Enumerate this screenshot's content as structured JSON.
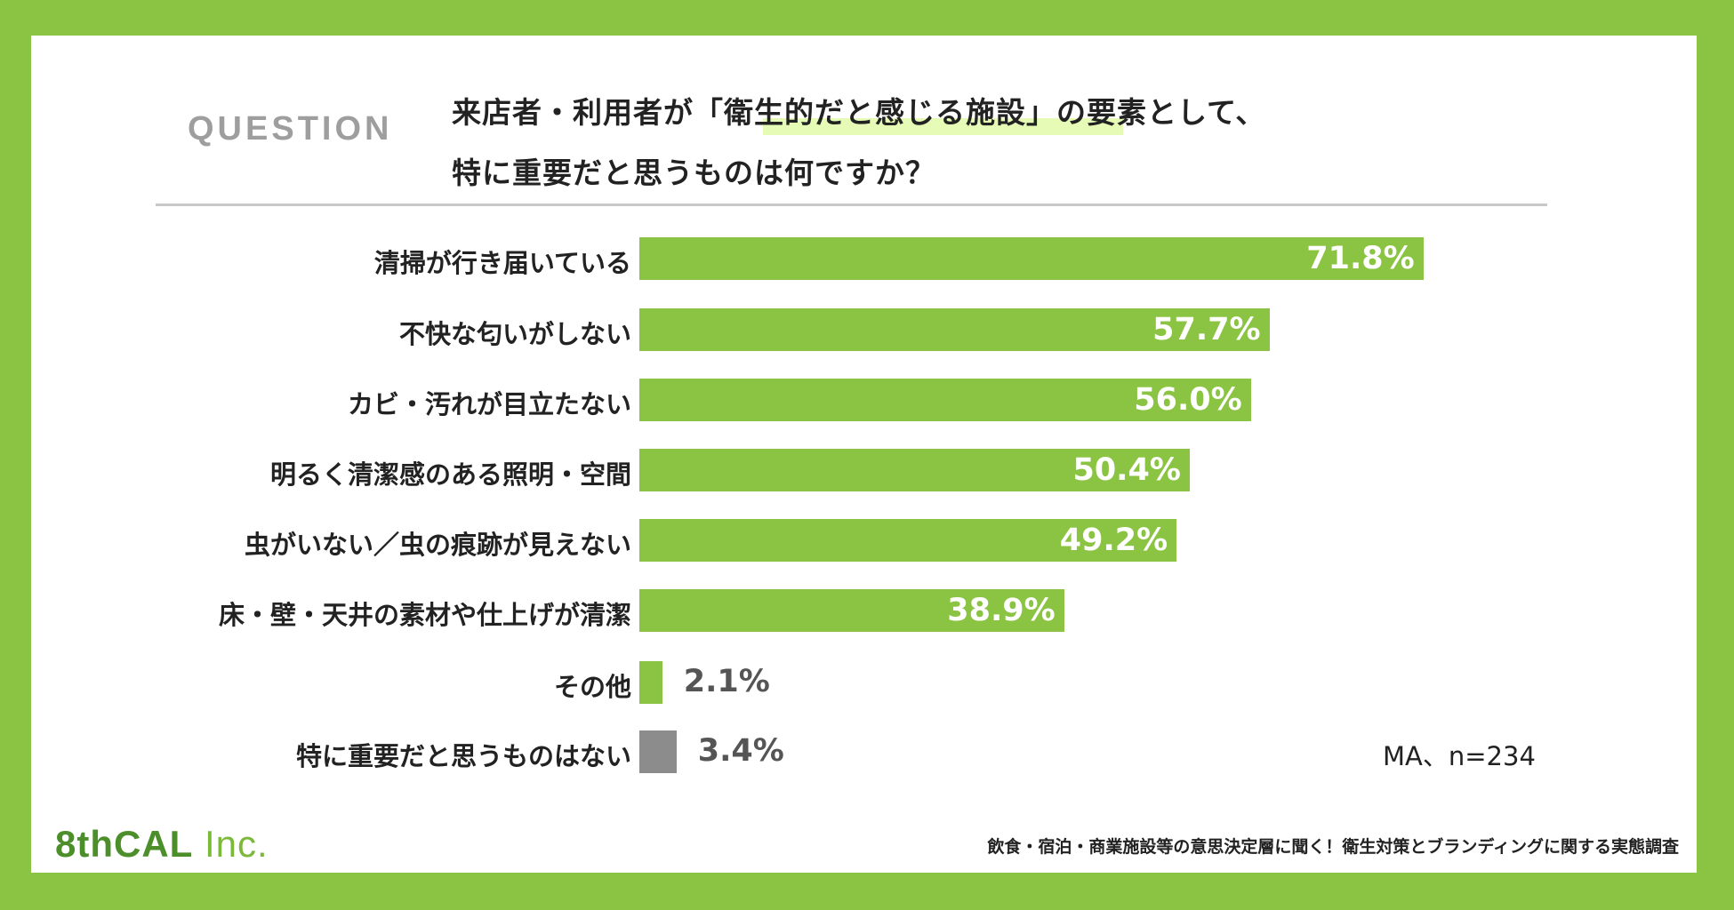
{
  "header": {
    "tag": "QUESTION",
    "question_line1_pre": "来店者・利用者が「",
    "question_line1_highlight": "衛生的だと感じる施設",
    "question_line1_post": "」の要素として、",
    "question_line2": "特に重要だと思うものは何ですか？"
  },
  "chart_data": {
    "type": "bar",
    "orientation": "horizontal",
    "title": "来店者・利用者が「衛生的だと感じる施設」の要素として、特に重要だと思うものは何ですか？",
    "categories": [
      "清掃が行き届いている",
      "不快な匂いがしない",
      "カビ・汚れが目立たない",
      "明るく清潔感のある照明・空間",
      "虫がいない／虫の痕跡が見えない",
      "床・壁・天井の素材や仕上げが清潔",
      "その他",
      "特に重要だと思うものはない"
    ],
    "values": [
      71.8,
      57.7,
      56.0,
      50.4,
      49.2,
      38.9,
      2.1,
      3.4
    ],
    "labels": [
      "71.8%",
      "57.7%",
      "56.0%",
      "50.4%",
      "49.2%",
      "38.9%",
      "2.1%",
      "3.4%"
    ],
    "colors": [
      "#8bc443",
      "#8bc443",
      "#8bc443",
      "#8bc443",
      "#8bc443",
      "#8bc443",
      "#8bc443",
      "#8c8c8c"
    ],
    "xlim": [
      0,
      100
    ],
    "note": "MA、n=234"
  },
  "footer": {
    "logo": "8thCAL Inc.",
    "source": "飲食・宿泊・商業施設等の意思決定層に聞く！衛生対策とブランディングに関する実態調査"
  }
}
